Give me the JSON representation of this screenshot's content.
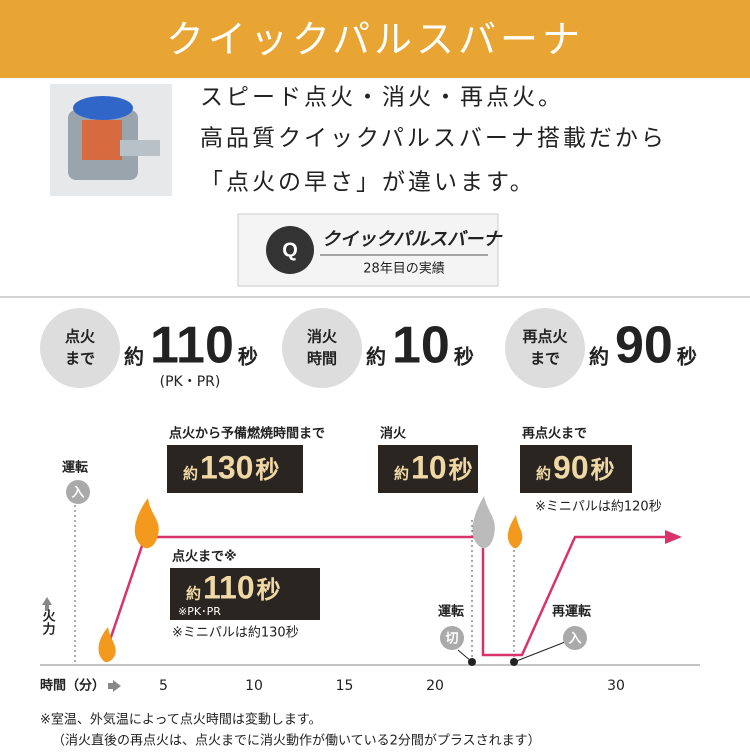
{
  "header": {
    "title": "クイックパルスバーナ"
  },
  "intro": {
    "lines": [
      "スピード点火・消火・再点火。",
      "高品質クイックパルスバーナ搭載だから",
      "「点火の早さ」が違います。"
    ]
  },
  "badge": {
    "name": "クイックパルスバーナ",
    "subtitle": "28年目の実績"
  },
  "stats": [
    {
      "label": [
        "点火",
        "まで"
      ],
      "prefix": "約",
      "value": 110,
      "unit": "秒",
      "note": "(PK・PR)"
    },
    {
      "label": [
        "消火",
        "時間"
      ],
      "prefix": "約",
      "value": 10,
      "unit": "秒"
    },
    {
      "label": [
        "再点火",
        "まで"
      ],
      "prefix": "約",
      "value": 90,
      "unit": "秒"
    }
  ],
  "diagram": {
    "power_on": {
      "label": "運転",
      "state": "入"
    },
    "y_label": "火力",
    "x_label": "時間（分）",
    "x_ticks": [
      5,
      10,
      15,
      20,
      30
    ],
    "callouts": [
      {
        "caption": "点火から予備燃焼時間まで",
        "prefix": "約",
        "value": 130,
        "unit": "秒"
      },
      {
        "caption": "消火",
        "prefix": "約",
        "value": 10,
        "unit": "秒"
      },
      {
        "caption": "再点火まで",
        "prefix": "約",
        "value": 90,
        "unit": "秒",
        "note": "※ミニパルは約120秒"
      },
      {
        "caption": "点火まで※",
        "prefix": "約",
        "value": 110,
        "unit": "秒",
        "sub": "※PK･PR",
        "note": "※ミニパルは約130秒"
      }
    ],
    "off": {
      "label": "運転",
      "state": "切"
    },
    "restart": {
      "label": "再運転",
      "state": "入"
    }
  },
  "footnotes": [
    "※室温、外気温によって点火時間は変動します。",
    "（消火直後の再点火は、点火までに消火動作が働いている2分間がプラスされます）"
  ]
}
